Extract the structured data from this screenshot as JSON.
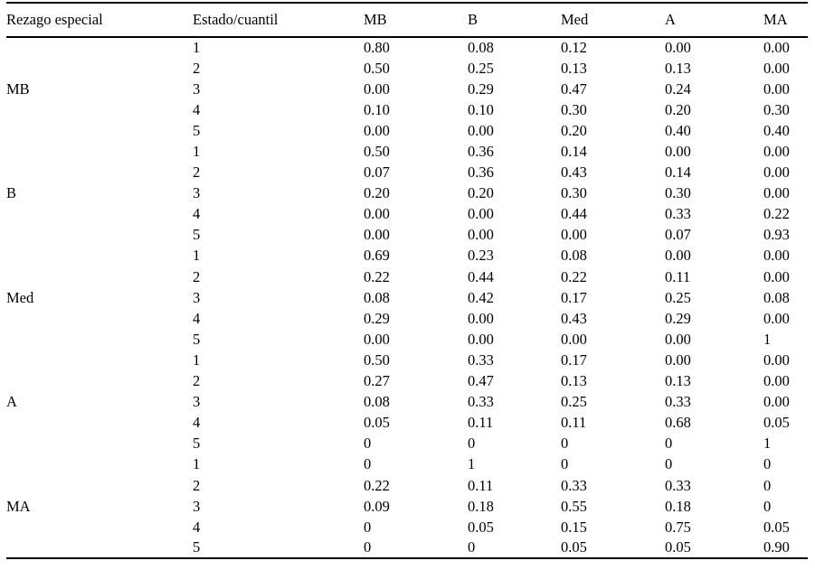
{
  "table": {
    "columns": [
      "Rezago especial",
      "Estado/cuantil",
      "MB",
      "B",
      "Med",
      "A",
      "MA"
    ],
    "groups": [
      {
        "label": "MB",
        "rows": [
          {
            "cuantil": "1",
            "values": [
              "0.80",
              "0.08",
              "0.12",
              "0.00",
              "0.00"
            ]
          },
          {
            "cuantil": "2",
            "values": [
              "0.50",
              "0.25",
              "0.13",
              "0.13",
              "0.00"
            ]
          },
          {
            "cuantil": "3",
            "values": [
              "0.00",
              "0.29",
              "0.47",
              "0.24",
              "0.00"
            ]
          },
          {
            "cuantil": "4",
            "values": [
              "0.10",
              "0.10",
              "0.30",
              "0.20",
              "0.30"
            ]
          },
          {
            "cuantil": "5",
            "values": [
              "0.00",
              "0.00",
              "0.20",
              "0.40",
              "0.40"
            ]
          }
        ]
      },
      {
        "label": "B",
        "rows": [
          {
            "cuantil": "1",
            "values": [
              "0.50",
              "0.36",
              "0.14",
              "0.00",
              "0.00"
            ]
          },
          {
            "cuantil": "2",
            "values": [
              "0.07",
              "0.36",
              "0.43",
              "0.14",
              "0.00"
            ]
          },
          {
            "cuantil": "3",
            "values": [
              "0.20",
              "0.20",
              "0.30",
              "0.30",
              "0.00"
            ]
          },
          {
            "cuantil": "4",
            "values": [
              "0.00",
              "0.00",
              "0.44",
              "0.33",
              "0.22"
            ]
          },
          {
            "cuantil": "5",
            "values": [
              "0.00",
              "0.00",
              "0.00",
              "0.07",
              "0.93"
            ]
          }
        ]
      },
      {
        "label": "Med",
        "rows": [
          {
            "cuantil": "1",
            "values": [
              "0.69",
              "0.23",
              "0.08",
              "0.00",
              "0.00"
            ]
          },
          {
            "cuantil": "2",
            "values": [
              "0.22",
              "0.44",
              "0.22",
              "0.11",
              "0.00"
            ]
          },
          {
            "cuantil": "3",
            "values": [
              "0.08",
              "0.42",
              "0.17",
              "0.25",
              "0.08"
            ]
          },
          {
            "cuantil": "4",
            "values": [
              "0.29",
              "0.00",
              "0.43",
              "0.29",
              "0.00"
            ]
          },
          {
            "cuantil": "5",
            "values": [
              "0.00",
              "0.00",
              "0.00",
              "0.00",
              "1"
            ]
          }
        ]
      },
      {
        "label": "A",
        "rows": [
          {
            "cuantil": "1",
            "values": [
              "0.50",
              "0.33",
              "0.17",
              "0.00",
              "0.00"
            ]
          },
          {
            "cuantil": "2",
            "values": [
              "0.27",
              "0.47",
              "0.13",
              "0.13",
              "0.00"
            ]
          },
          {
            "cuantil": "3",
            "values": [
              "0.08",
              "0.33",
              "0.25",
              "0.33",
              "0.00"
            ]
          },
          {
            "cuantil": "4",
            "values": [
              "0.05",
              "0.11",
              "0.11",
              "0.68",
              "0.05"
            ]
          },
          {
            "cuantil": "5",
            "values": [
              "0",
              "0",
              "0",
              "0",
              "1"
            ]
          }
        ]
      },
      {
        "label": "MA",
        "rows": [
          {
            "cuantil": "1",
            "values": [
              "0",
              "1",
              "0",
              "0",
              "0"
            ]
          },
          {
            "cuantil": "2",
            "values": [
              "0.22",
              "0.11",
              "0.33",
              "0.33",
              "0"
            ]
          },
          {
            "cuantil": "3",
            "values": [
              "0.09",
              "0.18",
              "0.55",
              "0.18",
              "0"
            ]
          },
          {
            "cuantil": "4",
            "values": [
              "0",
              "0.05",
              "0.15",
              "0.75",
              "0.05"
            ]
          },
          {
            "cuantil": "5",
            "values": [
              "0",
              "0",
              "0.05",
              "0.05",
              "0.90"
            ]
          }
        ]
      }
    ]
  }
}
